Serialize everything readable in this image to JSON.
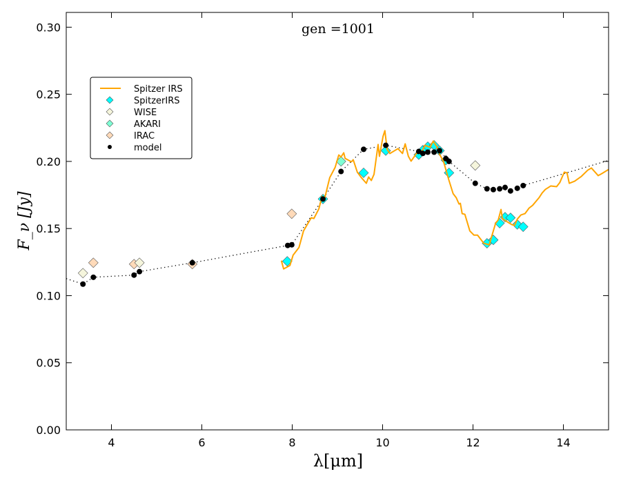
{
  "chart_data": {
    "type": "line",
    "title": "gen =1001",
    "xlabel": "λ[μm]",
    "ylabel": "F_ν [Jy]",
    "ylabel_main": "F",
    "ylabel_sub": "ν",
    "ylabel_unit": "[Jy]",
    "xlim": [
      3,
      15
    ],
    "ylim": [
      0,
      0.311
    ],
    "xticks": [
      4,
      6,
      8,
      10,
      12,
      14
    ],
    "xtick_labels": [
      "4",
      "6",
      "8",
      "10",
      "12",
      "14"
    ],
    "yticks": [
      0,
      0.05,
      0.1,
      0.15,
      0.2,
      0.25,
      0.3
    ],
    "ytick_labels": [
      "0.00",
      "0.05",
      "0.10",
      "0.15",
      "0.20",
      "0.25",
      "0.30"
    ],
    "grid": false,
    "legend_position": "upper-left",
    "colors": {
      "spitzer_irs": "#ffa500",
      "spitzerirs": "#00ffff",
      "wise": "#f5f5dc",
      "akari": "#7fffd4",
      "irac": "#ffdab9",
      "model": "#000000"
    },
    "series": [
      {
        "name": "Spitzer IRS",
        "kind": "line",
        "x": [
          7.76,
          7.81,
          7.95,
          8.02,
          8.15,
          8.25,
          8.42,
          8.48,
          8.59,
          8.66,
          8.71,
          8.83,
          8.95,
          9.03,
          9.08,
          9.14,
          9.17,
          9.31,
          9.35,
          9.44,
          9.53,
          9.64,
          9.69,
          9.75,
          9.81,
          9.9,
          9.93,
          10.01,
          10.05,
          10.1,
          10.16,
          10.34,
          10.44,
          10.5,
          10.57,
          10.63,
          10.77,
          10.85,
          10.94,
          11.05,
          11.12,
          11.2,
          11.26,
          11.35,
          11.46,
          11.56,
          11.63,
          11.69,
          11.72,
          11.76,
          11.82,
          11.93,
          12.02,
          12.1,
          12.24,
          12.3,
          12.36,
          12.4,
          12.5,
          12.56,
          12.62,
          12.65,
          12.76,
          12.86,
          12.92,
          12.98,
          13.06,
          13.15,
          13.24,
          13.32,
          13.46,
          13.53,
          13.6,
          13.72,
          13.85,
          13.92,
          14.02,
          14.08,
          14.13,
          14.25,
          14.4,
          14.54,
          14.62,
          14.77,
          14.85,
          15.0
        ],
        "y": [
          0.1261,
          0.1199,
          0.1225,
          0.1302,
          0.1359,
          0.1482,
          0.158,
          0.1575,
          0.1647,
          0.174,
          0.1714,
          0.1879,
          0.1956,
          0.2048,
          0.2033,
          0.2064,
          0.2023,
          0.1997,
          0.2012,
          0.192,
          0.1879,
          0.1837,
          0.1884,
          0.1858,
          0.1904,
          0.2126,
          0.2038,
          0.2187,
          0.2229,
          0.209,
          0.2059,
          0.2095,
          0.2059,
          0.2131,
          0.2038,
          0.2002,
          0.2069,
          0.2064,
          0.212,
          0.2105,
          0.2151,
          0.211,
          0.2054,
          0.1997,
          0.1868,
          0.176,
          0.1729,
          0.1683,
          0.1688,
          0.1611,
          0.1606,
          0.1482,
          0.1451,
          0.1451,
          0.139,
          0.1384,
          0.1379,
          0.1426,
          0.1539,
          0.1565,
          0.1642,
          0.1575,
          0.1549,
          0.1529,
          0.1523,
          0.157,
          0.1601,
          0.1611,
          0.1652,
          0.1673,
          0.1729,
          0.1765,
          0.1791,
          0.1817,
          0.1812,
          0.1842,
          0.192,
          0.1915,
          0.1837,
          0.1853,
          0.1889,
          0.1935,
          0.1951,
          0.1894,
          0.1909,
          0.194
        ]
      },
      {
        "name": "SpitzerIRS",
        "kind": "diamond",
        "x": [
          7.89,
          8.68,
          9.58,
          10.07,
          10.8,
          10.89,
          11.0,
          11.14,
          11.26,
          11.4,
          11.47,
          12.31,
          12.45,
          12.59,
          12.71,
          12.83,
          12.98,
          13.11
        ],
        "y": [
          0.1256,
          0.172,
          0.1915,
          0.208,
          0.205,
          0.2084,
          0.211,
          0.212,
          0.208,
          0.201,
          0.1915,
          0.139,
          0.1415,
          0.154,
          0.1585,
          0.158,
          0.153,
          0.1513
        ]
      },
      {
        "name": "WISE",
        "kind": "diamond",
        "x": [
          3.37,
          4.62,
          12.05
        ],
        "y": [
          0.1168,
          0.1245,
          0.197
        ]
      },
      {
        "name": "AKARI",
        "kind": "diamond",
        "x": [
          9.08
        ],
        "y": [
          0.2
        ]
      },
      {
        "name": "IRAC",
        "kind": "diamond",
        "x": [
          3.6,
          4.5,
          5.79,
          7.99
        ],
        "y": [
          0.1245,
          0.1235,
          0.1235,
          0.161
        ]
      },
      {
        "name": "model",
        "kind": "dot",
        "x": [
          3.37,
          3.6,
          4.5,
          4.62,
          5.79,
          7.9,
          7.99,
          8.68,
          9.08,
          9.58,
          10.07,
          10.8,
          10.89,
          11.0,
          11.14,
          11.26,
          11.4,
          11.47,
          12.05,
          12.31,
          12.45,
          12.59,
          12.71,
          12.83,
          12.98,
          13.11
        ],
        "y": [
          0.1086,
          0.1137,
          0.1153,
          0.1179,
          0.1245,
          0.1374,
          0.1379,
          0.172,
          0.1925,
          0.209,
          0.212,
          0.2074,
          0.206,
          0.2069,
          0.2069,
          0.208,
          0.202,
          0.2,
          0.1837,
          0.1796,
          0.179,
          0.1796,
          0.1806,
          0.178,
          0.18,
          0.182
        ]
      },
      {
        "name": "model curve",
        "kind": "dotted",
        "x": [
          3.0,
          3.37,
          3.6,
          4.5,
          4.62,
          5.79,
          7.9,
          7.99,
          8.68,
          9.08,
          9.58,
          10.07,
          10.8,
          11.0,
          11.26,
          11.47,
          12.05,
          12.31,
          12.59,
          12.83,
          13.11,
          15.0
        ],
        "y": [
          0.1127,
          0.1086,
          0.1137,
          0.1153,
          0.1179,
          0.1245,
          0.1374,
          0.1379,
          0.172,
          0.1925,
          0.209,
          0.212,
          0.2074,
          0.2069,
          0.208,
          0.2,
          0.1837,
          0.1796,
          0.1796,
          0.178,
          0.182,
          0.2007
        ]
      }
    ]
  }
}
